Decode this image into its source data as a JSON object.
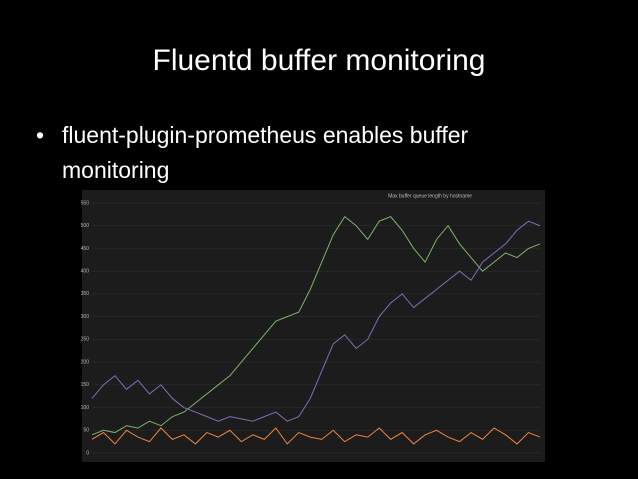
{
  "title": "Fluentd buffer monitoring",
  "bullets": [
    "fluent-plugin-prometheus enables buffer monitoring"
  ],
  "chart_data": {
    "type": "line",
    "title": "Max buffer queue length by hostname",
    "ylim": [
      0,
      550
    ],
    "yticks": [
      0,
      50,
      100,
      150,
      200,
      250,
      300,
      350,
      400,
      450,
      500,
      550
    ],
    "grid": true,
    "series": [
      {
        "color": "#7eb26d",
        "values": [
          40,
          50,
          45,
          60,
          55,
          70,
          60,
          80,
          90,
          110,
          130,
          150,
          170,
          200,
          230,
          260,
          290,
          300,
          310,
          360,
          420,
          480,
          520,
          500,
          470,
          510,
          520,
          490,
          450,
          420,
          470,
          500,
          460,
          430,
          400,
          420,
          440,
          430,
          450,
          460
        ]
      },
      {
        "color": "#806eb7",
        "values": [
          120,
          150,
          170,
          140,
          160,
          130,
          150,
          120,
          100,
          90,
          80,
          70,
          80,
          75,
          70,
          80,
          90,
          70,
          80,
          120,
          180,
          240,
          260,
          230,
          250,
          300,
          330,
          350,
          320,
          340,
          360,
          380,
          400,
          380,
          420,
          440,
          460,
          490,
          510,
          500
        ]
      },
      {
        "color": "#ef843c",
        "values": [
          30,
          45,
          20,
          50,
          35,
          25,
          55,
          30,
          40,
          20,
          45,
          35,
          50,
          25,
          40,
          30,
          55,
          20,
          45,
          35,
          30,
          50,
          25,
          40,
          35,
          55,
          30,
          45,
          20,
          40,
          50,
          35,
          25,
          45,
          30,
          55,
          40,
          20,
          45,
          35
        ]
      }
    ]
  }
}
